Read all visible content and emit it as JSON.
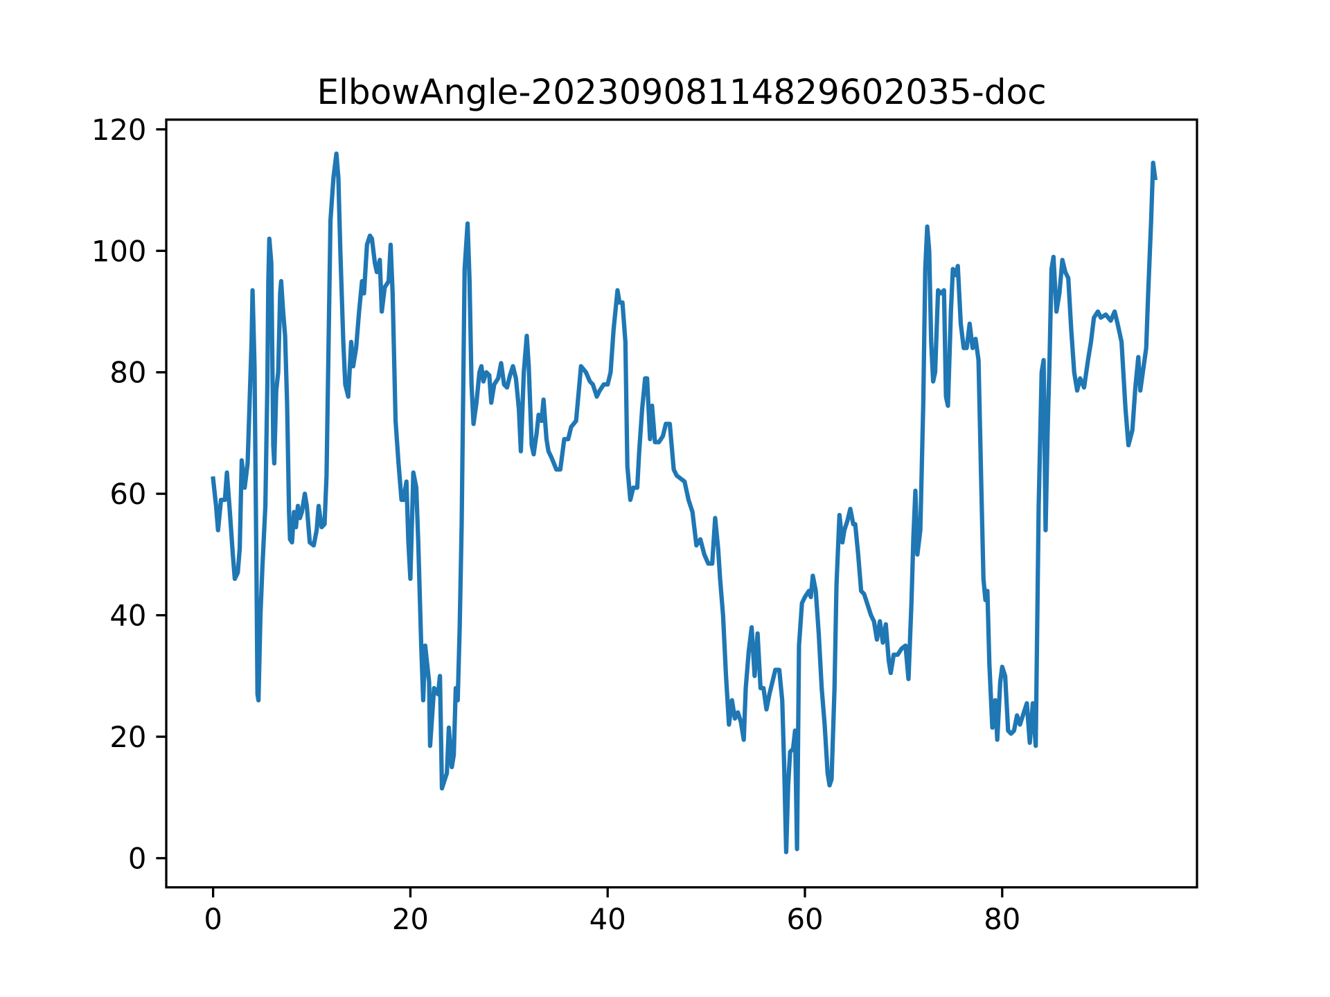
{
  "chart_data": {
    "type": "line",
    "title": "ElbowAngle-20230908114829602035-doc",
    "x": [
      0,
      0.3,
      0.5,
      0.8,
      1.2,
      1.4,
      1.7,
      2.0,
      2.2,
      2.5,
      2.7,
      2.9,
      3.2,
      3.5,
      3.7,
      3.9,
      4.0,
      4.2,
      4.4,
      4.5,
      4.6,
      4.8,
      5.0,
      5.3,
      5.5,
      5.6,
      5.7,
      5.9,
      6.1,
      6.2,
      6.4,
      6.6,
      6.8,
      6.9,
      7.1,
      7.3,
      7.5,
      7.7,
      7.8,
      8.0,
      8.2,
      8.4,
      8.6,
      8.8,
      9.0,
      9.3,
      9.5,
      9.8,
      10.2,
      10.5,
      10.7,
      11.0,
      11.3,
      11.5,
      11.9,
      12.2,
      12.5,
      12.7,
      12.9,
      13.2,
      13.4,
      13.7,
      14.0,
      14.2,
      14.5,
      14.8,
      15.1,
      15.3,
      15.6,
      15.9,
      16.1,
      16.4,
      16.6,
      16.9,
      17.1,
      17.4,
      17.8,
      18.0,
      18.2,
      18.5,
      18.8,
      19.1,
      19.3,
      19.6,
      19.8,
      20.0,
      20.3,
      20.6,
      20.8,
      21.1,
      21.3,
      21.5,
      21.7,
      21.9,
      22.0,
      22.4,
      22.8,
      23.0,
      23.2,
      23.4,
      23.7,
      23.9,
      24.2,
      24.4,
      24.6,
      24.8,
      25.0,
      25.2,
      25.5,
      25.8,
      26.0,
      26.2,
      26.4,
      26.7,
      27.0,
      27.2,
      27.4,
      27.7,
      28.0,
      28.2,
      28.5,
      28.9,
      29.2,
      29.5,
      29.8,
      30.1,
      30.4,
      30.7,
      31.0,
      31.2,
      31.5,
      31.8,
      32.0,
      32.3,
      32.5,
      32.8,
      33.0,
      33.3,
      33.5,
      33.8,
      34.0,
      34.3,
      34.8,
      35.2,
      35.6,
      36.0,
      36.3,
      36.8,
      37.3,
      37.8,
      38.2,
      38.5,
      38.9,
      39.2,
      39.6,
      40.0,
      40.3,
      40.6,
      41.0,
      41.2,
      41.5,
      41.8,
      42.0,
      42.3,
      42.6,
      43.0,
      43.2,
      43.5,
      43.8,
      44.0,
      44.3,
      44.5,
      44.8,
      45.2,
      45.6,
      45.9,
      46.3,
      46.7,
      47.0,
      47.4,
      47.8,
      48.2,
      48.6,
      49.0,
      49.4,
      49.8,
      50.2,
      50.6,
      50.9,
      51.2,
      51.4,
      51.7,
      52.0,
      52.3,
      52.6,
      52.9,
      53.2,
      53.5,
      53.8,
      54.0,
      54.3,
      54.6,
      54.9,
      55.2,
      55.5,
      55.8,
      56.1,
      56.4,
      56.7,
      57.0,
      57.4,
      57.7,
      57.9,
      58.1,
      58.3,
      58.5,
      58.8,
      59.0,
      59.2,
      59.4,
      59.7,
      60.0,
      60.4,
      60.6,
      60.8,
      61.1,
      61.4,
      61.7,
      62.0,
      62.3,
      62.5,
      62.7,
      63.0,
      63.2,
      63.5,
      63.8,
      64.0,
      64.3,
      64.6,
      64.9,
      65.1,
      65.4,
      65.7,
      66.0,
      66.4,
      66.7,
      67.0,
      67.3,
      67.6,
      67.9,
      68.2,
      68.5,
      68.7,
      69.0,
      69.4,
      69.8,
      70.2,
      70.5,
      70.8,
      71.0,
      71.2,
      71.4,
      71.7,
      72.0,
      72.2,
      72.4,
      72.6,
      72.8,
      73.0,
      73.2,
      73.5,
      73.8,
      74.1,
      74.3,
      74.5,
      74.8,
      75.0,
      75.3,
      75.5,
      75.8,
      76.1,
      76.4,
      76.7,
      77.0,
      77.3,
      77.6,
      77.9,
      78.1,
      78.3,
      78.5,
      78.7,
      79.0,
      79.3,
      79.5,
      79.8,
      80.0,
      80.3,
      80.6,
      80.9,
      81.2,
      81.5,
      81.8,
      82.2,
      82.5,
      82.8,
      83.1,
      83.4,
      83.7,
      84.0,
      84.2,
      84.4,
      84.6,
      84.8,
      85.0,
      85.2,
      85.5,
      85.8,
      86.1,
      86.4,
      86.7,
      87.0,
      87.3,
      87.6,
      87.9,
      88.3,
      88.7,
      89.0,
      89.3,
      89.7,
      90.0,
      90.5,
      91.0,
      91.4,
      91.7,
      92.1,
      92.5,
      92.8,
      93.2,
      93.5,
      93.8,
      94.0,
      94.3,
      94.6,
      94.8,
      95.1,
      95.3,
      95.5
    ],
    "values": [
      62.5,
      58,
      54,
      59,
      59,
      63.5,
      57,
      50,
      46,
      47,
      51,
      65.5,
      61,
      65,
      75,
      85,
      93.5,
      81,
      47,
      27,
      26,
      40,
      48,
      58,
      78,
      95,
      102,
      98,
      68,
      65,
      77,
      80,
      93,
      95,
      90,
      86,
      75,
      57,
      52.5,
      52,
      57,
      54.5,
      58,
      56,
      57,
      60,
      58,
      52,
      51.5,
      54,
      58,
      54.5,
      55,
      63,
      105,
      112,
      116,
      112,
      100,
      85,
      78,
      76,
      85,
      81,
      84,
      90,
      95,
      93,
      101,
      102.5,
      102,
      98,
      96.5,
      98.5,
      90,
      94,
      95,
      101,
      93,
      72,
      65,
      59,
      59,
      62,
      52,
      46,
      63.5,
      61,
      52,
      35,
      26,
      35,
      32,
      29,
      18.5,
      28,
      27,
      30,
      11.5,
      12.5,
      14,
      21.5,
      15,
      17,
      28,
      26,
      38,
      55,
      97,
      104.5,
      95,
      78,
      71.5,
      75,
      80,
      81,
      78.5,
      80,
      79.5,
      75,
      78,
      79,
      81.5,
      78,
      77.5,
      79.5,
      81,
      79,
      74,
      67,
      80,
      86,
      81,
      68,
      66.5,
      70,
      73,
      72,
      75.5,
      69,
      67,
      66,
      64,
      64,
      69,
      69,
      71,
      72,
      81,
      80,
      78.5,
      78,
      76,
      77,
      78,
      78,
      80,
      87,
      93.5,
      91.5,
      91.5,
      85,
      64.5,
      59,
      61,
      61,
      67,
      74,
      79,
      79,
      69,
      74.5,
      68.5,
      68.5,
      69.5,
      71.5,
      71.5,
      64,
      63,
      62.5,
      62,
      59,
      57,
      51.5,
      52.5,
      50,
      48.5,
      48.5,
      56,
      51,
      46,
      40,
      30,
      22,
      26,
      23,
      24,
      22.5,
      19.5,
      28,
      34,
      38,
      30,
      37,
      28,
      28,
      24.5,
      27,
      29,
      31,
      31,
      26,
      15,
      1,
      12,
      17.5,
      18,
      21,
      1.5,
      35,
      42,
      43,
      44,
      43,
      46.5,
      44,
      37,
      28,
      22,
      14,
      12,
      13,
      28,
      45,
      56.5,
      52,
      54,
      55.5,
      57.5,
      55,
      55,
      50,
      44,
      43.5,
      41.5,
      40,
      39,
      36,
      39,
      35.5,
      38.5,
      32.5,
      30.5,
      33.5,
      33.5,
      34.5,
      35,
      29.5,
      42,
      53,
      60.5,
      50,
      54,
      75,
      97,
      104,
      100,
      85,
      78.5,
      80,
      93.5,
      93,
      93.5,
      76,
      74.5,
      90,
      97,
      96,
      97.5,
      88,
      84,
      84,
      88,
      84,
      85.5,
      82,
      60,
      46,
      42.5,
      44,
      32,
      21.5,
      26,
      19.5,
      29,
      31.5,
      30,
      21,
      20.5,
      21,
      23.5,
      22,
      24,
      25.5,
      19,
      25.5,
      18.5,
      58,
      80,
      82,
      54,
      70,
      82,
      97,
      99,
      90,
      93,
      98.5,
      96.5,
      95.5,
      87,
      80,
      77,
      79,
      77.5,
      82,
      85,
      89,
      90,
      89,
      89.5,
      88.5,
      90,
      88,
      85,
      74,
      68,
      70.5,
      77.5,
      82.5,
      77,
      80.5,
      84,
      93,
      105,
      114.5,
      112
    ],
    "color": "#1f77b4",
    "xlim": [
      -4.75,
      99.75
    ],
    "ylim": [
      -4.8,
      121.6
    ],
    "xticks": [
      0,
      20,
      40,
      60,
      80
    ],
    "yticks": [
      0,
      20,
      40,
      60,
      80,
      100,
      120
    ]
  }
}
